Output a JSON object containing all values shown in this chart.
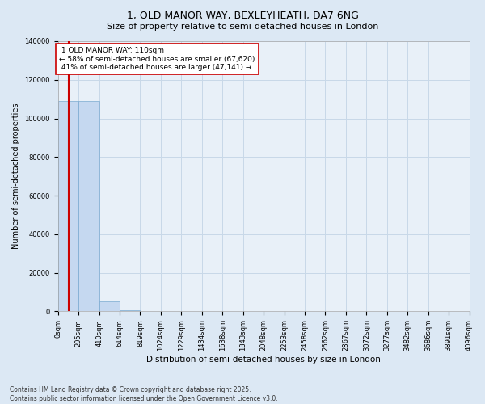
{
  "title": "1, OLD MANOR WAY, BEXLEYHEATH, DA7 6NG",
  "subtitle": "Size of property relative to semi-detached houses in London",
  "xlabel": "Distribution of semi-detached houses by size in London",
  "ylabel": "Number of semi-detached properties",
  "property_size": 110,
  "property_label": "1 OLD MANOR WAY: 110sqm",
  "pct_smaller": 58,
  "count_smaller": 67620,
  "pct_larger": 41,
  "count_larger": 47141,
  "ylim": [
    0,
    140000
  ],
  "yticks": [
    0,
    20000,
    40000,
    60000,
    80000,
    100000,
    120000,
    140000
  ],
  "footer_line1": "Contains HM Land Registry data © Crown copyright and database right 2025.",
  "footer_line2": "Contains public sector information licensed under the Open Government Licence v3.0.",
  "bin_edges": [
    0,
    205,
    410,
    614,
    819,
    1024,
    1229,
    1434,
    1638,
    1843,
    2048,
    2253,
    2458,
    2662,
    2867,
    3072,
    3277,
    3482,
    3686,
    3891,
    4096
  ],
  "bin_counts": [
    109000,
    109000,
    5000,
    400,
    180,
    90,
    55,
    35,
    25,
    18,
    13,
    10,
    8,
    7,
    6,
    5,
    4,
    3,
    2,
    1
  ],
  "bar_color": "#c5d8f0",
  "bar_edge_color": "#7aaad0",
  "red_line_color": "#cc0000",
  "annotation_bg": "#ffffff",
  "annotation_border": "#cc0000",
  "grid_color": "#c8d8e8",
  "background_color": "#dce8f4",
  "plot_bg_color": "#e8f0f8",
  "title_fontsize": 9,
  "subtitle_fontsize": 8,
  "tick_fontsize": 6,
  "ylabel_fontsize": 7,
  "xlabel_fontsize": 7.5,
  "annotation_fontsize": 6.5,
  "footer_fontsize": 5.5
}
